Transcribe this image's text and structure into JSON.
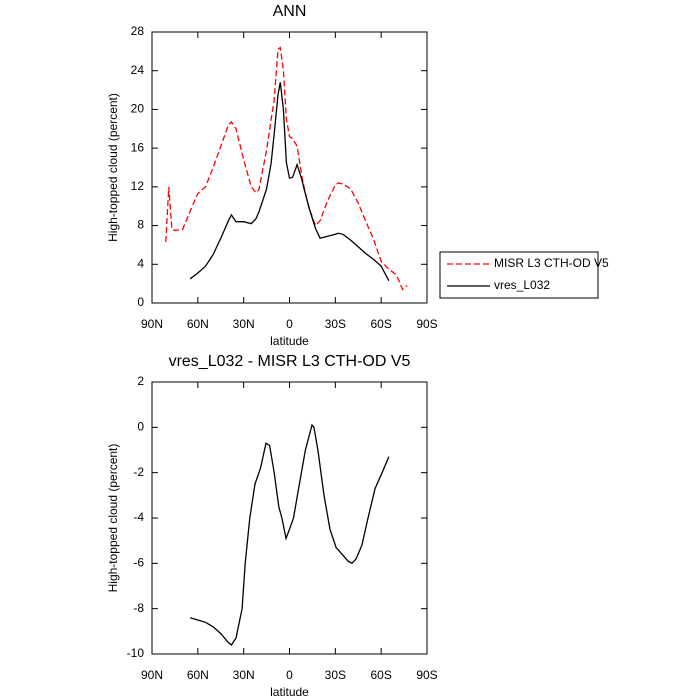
{
  "chart_data": [
    {
      "type": "line",
      "title": "ANN",
      "xlabel": "latitude",
      "ylabel": "High-topped cloud (percent)",
      "x": [
        81,
        79,
        77,
        75,
        70,
        65,
        60,
        55,
        50,
        45,
        40,
        38,
        35,
        30,
        25,
        22,
        20,
        15,
        12,
        10,
        7.5,
        6,
        4,
        2,
        0,
        -2,
        -5,
        -8,
        -10,
        -13,
        -17,
        -20,
        -25,
        -30,
        -32,
        -35,
        -40,
        -45,
        -50,
        -55,
        -60,
        -65,
        -70,
        -74,
        -77
      ],
      "series": [
        {
          "name": "MISR L3 CTH-OD V5",
          "color": "#ff0000",
          "line_style": "dashed",
          "values": [
            6.3,
            12,
            7.6,
            7.5,
            7.6,
            9.5,
            11.3,
            12,
            14,
            16.2,
            18.4,
            18.7,
            18,
            14.8,
            12,
            11.4,
            11.7,
            15.8,
            19,
            21,
            26.2,
            26.4,
            24,
            19,
            17.2,
            17,
            16.2,
            13.2,
            11.6,
            9.7,
            8,
            8.5,
            10.6,
            12.2,
            12.4,
            12.3,
            11.8,
            10.3,
            8.4,
            6.6,
            4.3,
            3.5,
            2.9,
            1.4,
            1.8
          ]
        },
        {
          "name": "vres_L032",
          "color": "#000000",
          "line_style": "solid",
          "values": [
            null,
            null,
            null,
            null,
            null,
            2.5,
            3.1,
            3.8,
            5.0,
            6.7,
            8.5,
            9.1,
            8.4,
            8.4,
            8.2,
            8.7,
            9.4,
            11.8,
            14.5,
            17.5,
            21.5,
            22.8,
            20,
            14.5,
            12.9,
            13,
            14.3,
            12.8,
            11.5,
            9.7,
            7.7,
            6.7,
            6.9,
            7.1,
            7.2,
            7.1,
            6.5,
            5.8,
            5.1,
            4.5,
            3.8,
            2.3,
            null,
            null,
            null
          ]
        }
      ],
      "xlim": [
        90,
        -90
      ],
      "xticks": [
        {
          "value": 90,
          "label": "90N"
        },
        {
          "value": 60,
          "label": "60N"
        },
        {
          "value": 30,
          "label": "30N"
        },
        0,
        {
          "value": -30,
          "label": "30S"
        },
        {
          "value": -60,
          "label": "60S"
        },
        {
          "value": -90,
          "label": "90S"
        }
      ],
      "ylim": [
        0,
        28
      ],
      "yticks": [
        0,
        4,
        8,
        12,
        16,
        20,
        24,
        28
      ],
      "legend": "outside-right"
    },
    {
      "type": "line",
      "title": "vres_L032 - MISR L3 CTH-OD V5",
      "xlabel": "latitude",
      "ylabel": "High-topped cloud (percent)",
      "x": [
        65,
        60,
        55,
        50,
        45,
        40,
        38,
        35,
        31,
        29,
        26,
        22.6,
        19,
        15.4,
        13,
        10,
        7,
        5,
        2.3,
        0,
        -2.6,
        -6.5,
        -10.4,
        -14.7,
        -16,
        -18.6,
        -22.6,
        -26.5,
        -30.5,
        -34.4,
        -38.3,
        -40.9,
        -43.6,
        -47.4,
        -51.4,
        -56,
        -60.6,
        -65
      ],
      "series": [
        {
          "color": "#000000",
          "line_style": "solid",
          "values": [
            -8.4,
            -8.5,
            -8.6,
            -8.8,
            -9.1,
            -9.5,
            -9.6,
            -9.3,
            -8,
            -6,
            -4,
            -2.5,
            -1.8,
            -0.7,
            -0.8,
            -2,
            -3.5,
            -4,
            -4.9,
            -4.5,
            -4,
            -2.5,
            -1,
            0.1,
            0,
            -1,
            -3,
            -4.5,
            -5.3,
            -5.6,
            -5.9,
            -6,
            -5.8,
            -5.2,
            -4,
            -2.7,
            -2,
            -1.3
          ]
        }
      ],
      "xlim": [
        90,
        -90
      ],
      "xticks": [
        {
          "value": 90,
          "label": "90N"
        },
        {
          "value": 60,
          "label": "60N"
        },
        {
          "value": 30,
          "label": "30N"
        },
        0,
        {
          "value": -30,
          "label": "30S"
        },
        {
          "value": -60,
          "label": "60S"
        },
        {
          "value": -90,
          "label": "90S"
        }
      ],
      "ylim": [
        -10,
        2
      ],
      "yticks": [
        -10,
        -8,
        -6,
        -4,
        -2,
        0,
        2
      ]
    }
  ]
}
